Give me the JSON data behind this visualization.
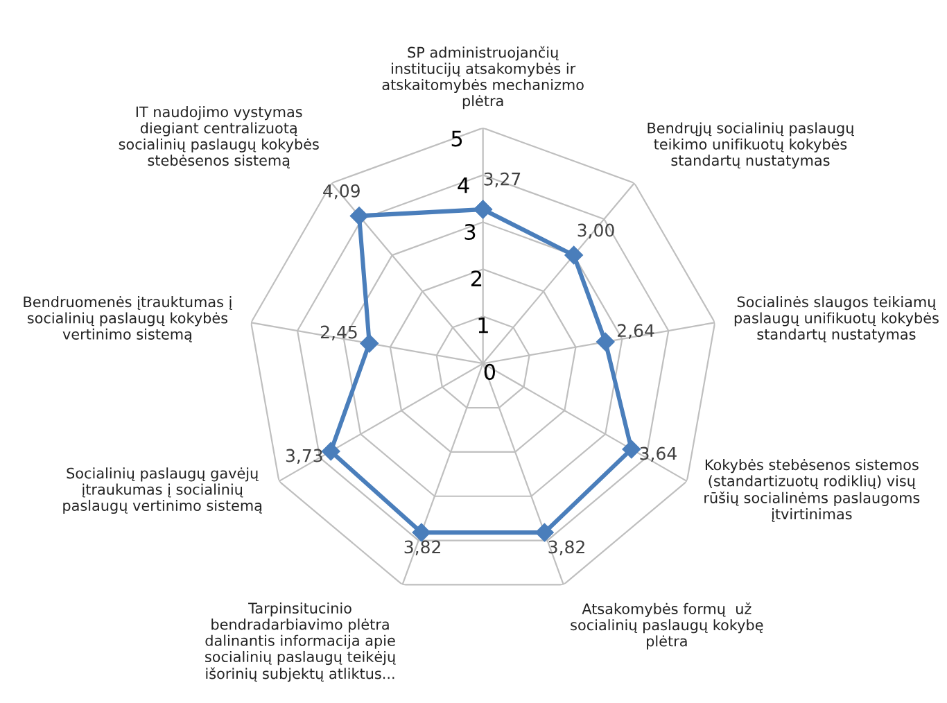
{
  "chart_data": {
    "type": "radar",
    "categories": [
      "SP administruojančių\ninstitucijų atsakomybės ir\natskaitomybės mechanizmo\nplėtra",
      "Bendrųjų socialinių paslaugų\nteikimo unifikuotų kokybės\nstandartų nustatymas",
      "Socialinės slaugos teikiamų\npaslaugų unifikuotų kokybės\nstandartų nustatymas",
      "Kokybės stebėsenos sistemos\n(standartizuotų rodiklių) visų\nrūšių socialinėms paslaugoms\nįtvirtinimas",
      "Atsakomybės formų  už\nsocialinių paslaugų kokybę\nplėtra",
      "Tarpinsitucinio\nbendradarbiavimo plėtra\ndalinantis informacija apie\nsocialinių paslaugų teikėjų\nišorinių subjektų atliktus...",
      "Socialinių paslaugų gavėjų\nįtraukumas į socialinių\npaslaugų vertinimo sistemą",
      "Bendruomenės įtrauktumas į\nsocialinių paslaugų kokybės\nvertinimo sistemą",
      "IT naudojimo vystymas\ndiegiant centralizuotą\nsocialinių paslaugų kokybės\nstebėsenos sistemą"
    ],
    "series": [
      {
        "color": "#4a7ebb",
        "values": [
          3.27,
          3.0,
          2.64,
          3.64,
          3.82,
          3.82,
          3.73,
          2.45,
          4.09
        ],
        "value_labels": [
          "3,27",
          "3,00",
          "2,64",
          "3,64",
          "3,82",
          "3,82",
          "3,73",
          "2,45",
          "4,09"
        ]
      }
    ],
    "ylim": [
      0,
      5
    ],
    "yticks": [
      0,
      1,
      2,
      3,
      4,
      5
    ],
    "grid": true,
    "marker": "diamond",
    "line_style": "solid"
  }
}
